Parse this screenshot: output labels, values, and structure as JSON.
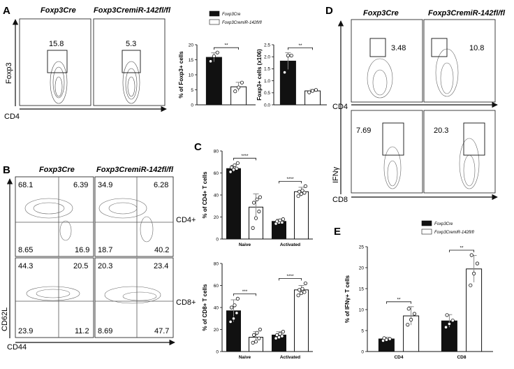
{
  "panels": {
    "A": {
      "letter": "A",
      "col_titles": [
        "Foxp3Cre",
        "Foxp3CremiR-142fl/fl"
      ],
      "y_axis": "Foxp3",
      "x_axis": "CD4",
      "gate_values": [
        "15.8",
        "5.3"
      ]
    },
    "B": {
      "letter": "B",
      "col_titles": [
        "Foxp3Cre",
        "Foxp3CremiR-142fl/fl"
      ],
      "y_axis": "CD62L",
      "x_axis": "CD44",
      "row_labels": [
        "CD4+",
        "CD8+"
      ],
      "quadrants": {
        "cd4_ctrl": [
          "68.1",
          "6.39",
          "8.65",
          "16.9"
        ],
        "cd4_ko": [
          "34.9",
          "6.28",
          "18.7",
          "40.2"
        ],
        "cd8_ctrl": [
          "44.3",
          "20.5",
          "23.9",
          "11.2"
        ],
        "cd8_ko": [
          "20.3",
          "23.4",
          "8.69",
          "47.7"
        ]
      }
    },
    "D": {
      "letter": "D",
      "col_titles": [
        "Foxp3Cre",
        "Foxp3CremiR-142fl/fl"
      ],
      "y_axis": "IFNγ",
      "x_axes": [
        "CD4",
        "CD8"
      ],
      "gate_values": {
        "cd4_ctrl": "3.48",
        "cd4_ko": "10.8",
        "cd8_ctrl": "7.69",
        "cd8_ko": "20.3"
      }
    },
    "C": {
      "letter": "C"
    },
    "E": {
      "letter": "E"
    }
  },
  "chart_data": [
    {
      "id": "A1",
      "type": "bar",
      "categories": [
        "Foxp3Cre",
        "Foxp3CremiR-142fl/fl"
      ],
      "values": [
        15.8,
        6.0
      ],
      "errors": [
        1.5,
        1.5
      ],
      "points": [
        [
          14.5,
          16.2,
          17.4
        ],
        [
          4.5,
          5.8,
          7.4
        ]
      ],
      "ylabel": "% of Foxp3+ cells",
      "ylim": [
        0,
        20
      ],
      "yticks": [
        "0",
        "5",
        "10",
        "15",
        "20"
      ],
      "sig": [
        "**"
      ],
      "legend": [
        "Foxp3Cre",
        "Foxp3CremiR-142fl/fl"
      ]
    },
    {
      "id": "A2",
      "type": "bar",
      "categories": [
        "Foxp3Cre",
        "Foxp3CremiR-142fl/fl"
      ],
      "values": [
        1.82,
        0.58
      ],
      "errors": [
        0.35,
        0.06
      ],
      "points": [
        [
          1.35,
          2.05,
          2.05
        ],
        [
          0.52,
          0.58,
          0.62
        ]
      ],
      "ylabel": "Foxp3+ cells (x106)",
      "ylim": [
        0,
        2.5
      ],
      "yticks": [
        "0.0",
        "0.5",
        "1.0",
        "1.5",
        "2.0",
        "2.5"
      ],
      "sig": [
        "**"
      ]
    },
    {
      "id": "C1",
      "type": "bar",
      "categories": [
        "Naive",
        "Activated"
      ],
      "series": [
        {
          "name": "Foxp3Cre",
          "values": [
            64,
            16
          ],
          "errors": [
            3,
            2
          ],
          "points": [
            [
              61,
              63,
              64,
              65,
              67,
              69
            ],
            [
              14,
              15,
              15,
              16,
              17,
              18
            ]
          ]
        },
        {
          "name": "Foxp3CremiR-142fl/fl",
          "values": [
            29,
            43
          ],
          "errors": [
            12,
            4
          ],
          "points": [
            [
              10,
              19,
              25,
              33,
              36,
              38
            ],
            [
              39,
              41,
              42,
              43,
              44,
              48
            ]
          ]
        }
      ],
      "ylabel": "% of CD4+ T cells",
      "ylim": [
        0,
        80
      ],
      "yticks": [
        "0",
        "20",
        "40",
        "60",
        "80"
      ],
      "sig": [
        "****",
        "****"
      ]
    },
    {
      "id": "C2",
      "type": "bar",
      "categories": [
        "Naive",
        "Activated"
      ],
      "series": [
        {
          "name": "Foxp3Cre",
          "values": [
            37,
            15
          ],
          "errors": [
            10,
            3
          ],
          "points": [
            [
              27,
              30,
              35,
              40,
              42,
              48
            ],
            [
              12,
              13,
              14,
              15,
              16,
              18
            ]
          ]
        },
        {
          "name": "Foxp3CremiR-142fl/fl",
          "values": [
            13,
            56
          ],
          "errors": [
            5,
            4
          ],
          "points": [
            [
              8,
              9,
              12,
              15,
              17,
              20
            ],
            [
              51,
              53,
              54,
              56,
              57,
              62
            ]
          ]
        }
      ],
      "ylabel": "% of CD8+ T cells",
      "ylim": [
        0,
        80
      ],
      "yticks": [
        "0",
        "20",
        "40",
        "60",
        "80"
      ],
      "sig": [
        "***",
        "****"
      ]
    },
    {
      "id": "E",
      "type": "bar",
      "categories": [
        "CD4",
        "CD8"
      ],
      "series": [
        {
          "name": "Foxp3Cre",
          "values": [
            3.0,
            7.3
          ],
          "errors": [
            0.4,
            1.5
          ],
          "points": [
            [
              2.6,
              2.8,
              3.0,
              3.2
            ],
            [
              5.8,
              6.6,
              7.4,
              8.7
            ]
          ]
        },
        {
          "name": "Foxp3CremiR-142fl/fl",
          "values": [
            8.5,
            19.7
          ],
          "errors": [
            2.2,
            3.2
          ],
          "points": [
            [
              6.4,
              7.6,
              9.0,
              10.2
            ],
            [
              15.8,
              18.6,
              21.0,
              23.0
            ]
          ]
        }
      ],
      "ylabel": "% of IFNγ+ T cells",
      "ylim": [
        0,
        25
      ],
      "yticks": [
        "0",
        "5",
        "10",
        "15",
        "20",
        "25"
      ],
      "sig": [
        "**",
        "**"
      ],
      "legend": [
        "Foxp3Cre",
        "Foxp3CremiR-142fl/fl"
      ]
    }
  ]
}
